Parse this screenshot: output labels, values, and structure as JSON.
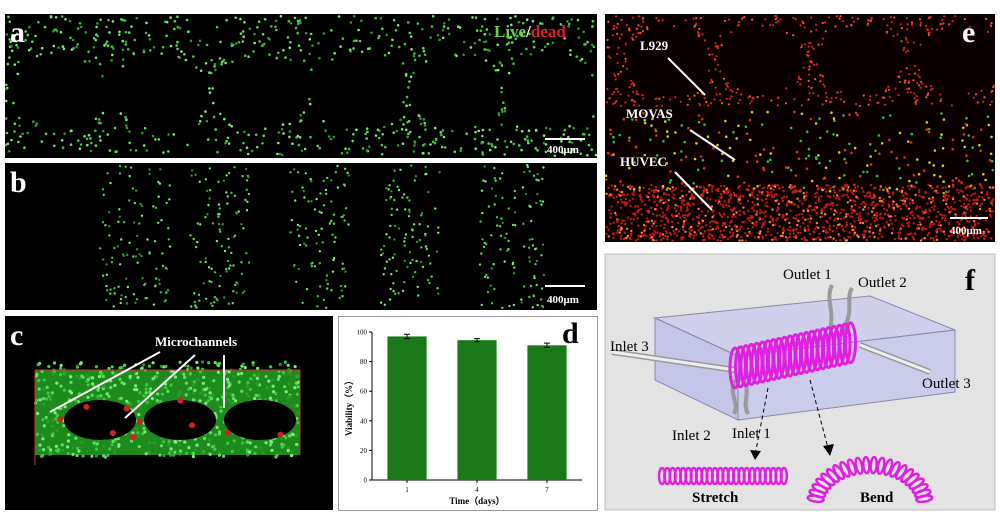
{
  "panels": {
    "a": {
      "label": "a",
      "legend_live": "Live",
      "legend_sep": "/",
      "legend_dead": "dead",
      "scale_bar": "400μm"
    },
    "b": {
      "label": "b",
      "scale_bar": "400μm"
    },
    "c": {
      "label": "c",
      "annotation": "Microchannels"
    },
    "e": {
      "label": "e",
      "cell_labels": [
        "L929",
        "MOVAS",
        "HUVEC"
      ],
      "scale_bar": "400μm"
    },
    "f": {
      "label": "f",
      "ports": [
        "Outlet 1",
        "Outlet 2",
        "Outlet 3",
        "Inlet 1",
        "Inlet 2",
        "Inlet 3"
      ],
      "modes": [
        "Stretch",
        "Bend"
      ]
    }
  },
  "chart_data": {
    "type": "bar",
    "panel_label": "d",
    "categories": [
      "1",
      "4",
      "7"
    ],
    "values": [
      97,
      94.5,
      91
    ],
    "errors": [
      1.5,
      1,
      1.5
    ],
    "color": "#1a7a1a",
    "xlabel": "Time（days）",
    "ylabel": "Viability（%）",
    "ylim": [
      0,
      100
    ],
    "yticks": [
      0,
      20,
      40,
      60,
      80,
      100
    ]
  }
}
